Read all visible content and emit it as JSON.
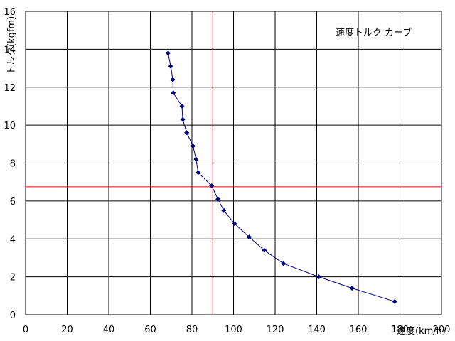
{
  "chart_data": {
    "type": "line",
    "title": "速度トルク カーブ",
    "xlabel": "速度(km/h)",
    "ylabel": "トルク(kgfm)",
    "xlim": [
      0,
      200
    ],
    "ylim": [
      0,
      16
    ],
    "xticks": [
      0,
      20,
      40,
      60,
      80,
      100,
      120,
      140,
      160,
      180,
      200
    ],
    "yticks": [
      0,
      2,
      4,
      6,
      8,
      10,
      12,
      14,
      16
    ],
    "grid": true,
    "series": [
      {
        "color": "#000080",
        "marker": "diamond",
        "x": [
          68.5,
          69.8,
          70.8,
          71.0,
          75.2,
          75.6,
          77.5,
          80.5,
          82.0,
          83.0,
          89.5,
          92.5,
          95.3,
          100.5,
          107.5,
          114.8,
          124.0,
          141.0,
          157.0,
          177.5
        ],
        "y": [
          13.8,
          13.1,
          12.4,
          11.7,
          11.0,
          10.3,
          9.6,
          8.9,
          8.2,
          7.5,
          6.8,
          6.1,
          5.5,
          4.8,
          4.1,
          3.4,
          2.7,
          2.0,
          1.4,
          0.7
        ]
      }
    ],
    "reference_lines": [
      {
        "axis": "x",
        "value": 90,
        "color": "#ff0000"
      },
      {
        "axis": "y",
        "value": 6.75,
        "color": "#ff0000"
      }
    ]
  }
}
